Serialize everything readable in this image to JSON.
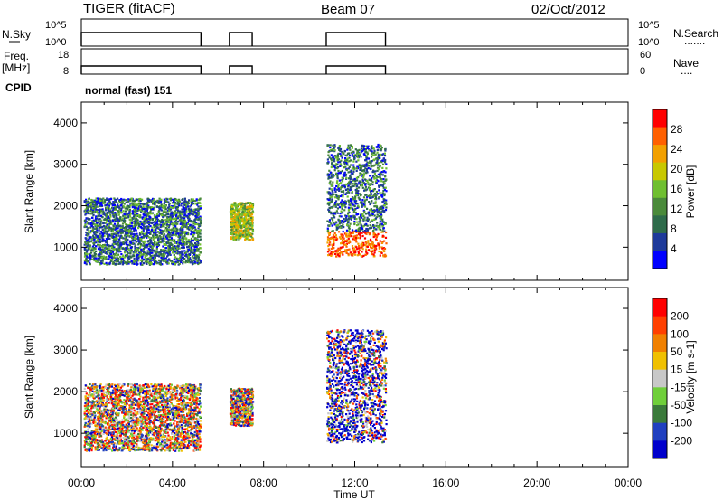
{
  "header": {
    "radar": "TIGER (fitACF)",
    "beam": "Beam 07",
    "date": "02/Oct/2012"
  },
  "top_panels": {
    "nsky": {
      "label": "N.Sky",
      "ticks": [
        "10^5",
        "10^0"
      ],
      "right_ticks": [
        "10^5",
        "10^0"
      ],
      "right_label": "N.Search",
      "right_dots": "......."
    },
    "freq": {
      "label": "Freq.",
      "unit": "[MHz]",
      "ticks": [
        "18",
        "8"
      ],
      "right_ticks": [
        "60",
        "0"
      ],
      "right_label": "Nave",
      "right_dots": "...."
    },
    "cpid": {
      "label": "CPID",
      "text": "normal (fast) 151"
    }
  },
  "chart_data": [
    {
      "type": "line",
      "name": "nsky-strip",
      "segments_hours": [
        [
          0.0,
          5.25
        ],
        [
          6.5,
          7.5
        ],
        [
          10.75,
          13.35
        ]
      ],
      "level": "high"
    },
    {
      "type": "line",
      "name": "freq-strip",
      "segments_hours": [
        [
          0.0,
          5.25
        ],
        [
          6.5,
          7.5
        ],
        [
          10.75,
          13.35
        ]
      ],
      "level": "high"
    },
    {
      "type": "heatmap",
      "name": "power",
      "xlabel": "",
      "ylabel": "Slant Range [km]",
      "xlim_hours": [
        0,
        24
      ],
      "ylim": [
        200,
        4500
      ],
      "yticks": [
        "4000",
        "3000",
        "2000",
        "1000"
      ],
      "colorbar": {
        "label": "Power [dB]",
        "ticks": [
          "28",
          "24",
          "20",
          "16",
          "12",
          "8",
          "4"
        ],
        "colors": [
          "#0000ff",
          "#1e3a9a",
          "#2e6b4a",
          "#4a8a3a",
          "#6fbf30",
          "#c8c800",
          "#f2a000",
          "#ff6000",
          "#ff0000"
        ]
      },
      "data_blocks": [
        {
          "t0": 0.1,
          "t1": 5.2,
          "r0": 600,
          "r1": 2200
        },
        {
          "t0": 6.5,
          "t1": 7.5,
          "r0": 1200,
          "r1": 2100
        },
        {
          "t0": 10.75,
          "t1": 13.35,
          "r0": 800,
          "r1": 3500
        }
      ]
    },
    {
      "type": "heatmap",
      "name": "velocity",
      "xlabel": "Time UT",
      "ylabel": "Slant Range [km]",
      "xlim_hours": [
        0,
        24
      ],
      "ylim": [
        200,
        4500
      ],
      "yticks": [
        "4000",
        "3000",
        "2000",
        "1000"
      ],
      "xticks": [
        "00:00",
        "04:00",
        "08:00",
        "12:00",
        "16:00",
        "20:00",
        "00:00"
      ],
      "colorbar": {
        "label": "Velocity [m s-1]",
        "ticks": [
          "200",
          "100",
          "50",
          "15",
          "-15",
          "-50",
          "-100",
          "-200"
        ],
        "colors": [
          "#0000cc",
          "#2040c0",
          "#3a7a3a",
          "#6fcf3a",
          "#c8c8c8",
          "#f0c000",
          "#f08000",
          "#ff4000",
          "#ff0000"
        ]
      },
      "data_blocks": [
        {
          "t0": 0.1,
          "t1": 5.2,
          "r0": 600,
          "r1": 2200
        },
        {
          "t0": 6.5,
          "t1": 7.5,
          "r0": 1200,
          "r1": 2100
        },
        {
          "t0": 10.75,
          "t1": 13.35,
          "r0": 800,
          "r1": 3500
        }
      ]
    }
  ]
}
